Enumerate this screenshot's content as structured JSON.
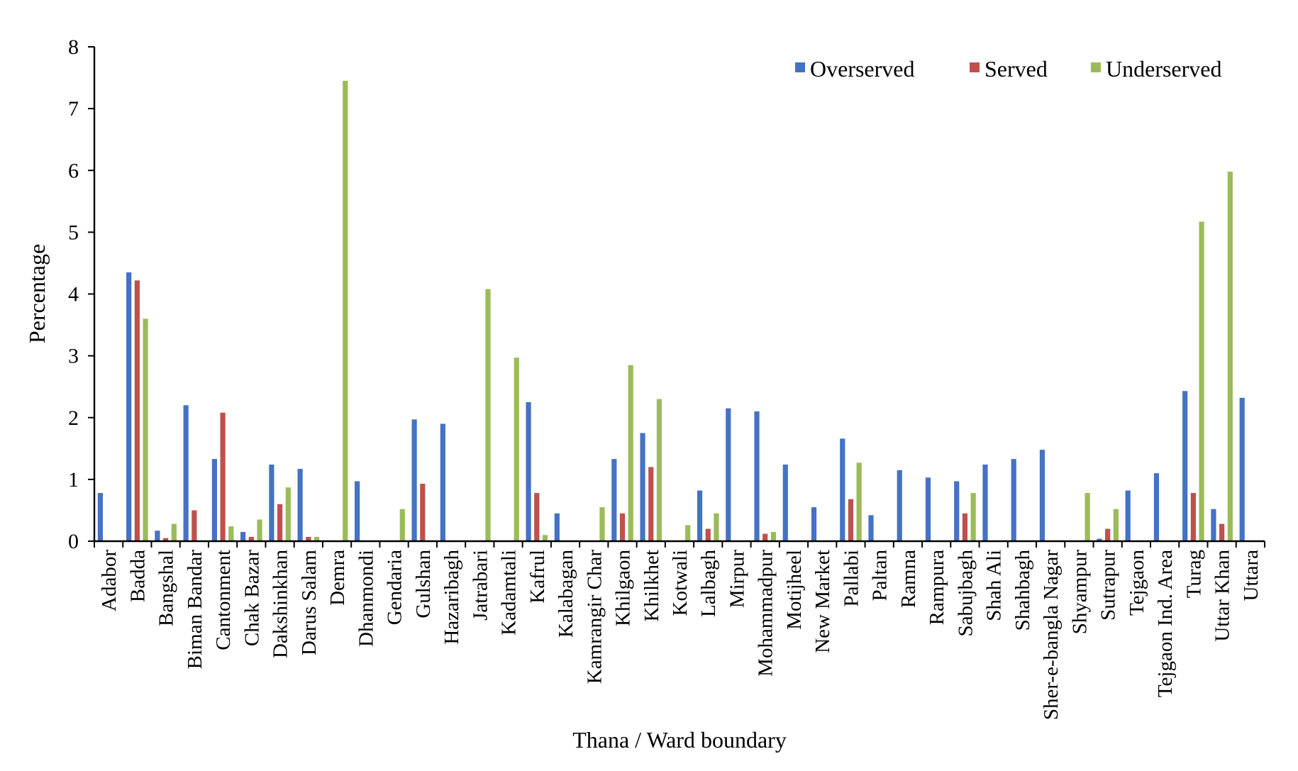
{
  "chart_data": {
    "type": "bar",
    "xlabel": "Thana / Ward boundary",
    "ylabel": "Percentage",
    "ylim": [
      0,
      8
    ],
    "yticks": [
      0,
      1,
      2,
      3,
      4,
      5,
      6,
      7,
      8
    ],
    "grid": false,
    "legend_position": "top-right",
    "categories": [
      "Adabor",
      "Badda",
      "Bangshal",
      "Biman Bandar",
      "Cantonment",
      "Chak Bazar",
      "Dakshinkhan",
      "Darus Salam",
      "Demra",
      "Dhanmondi",
      "Gendaria",
      "Gulshan",
      "Hazaribagh",
      "Jatrabari",
      "Kadamtali",
      "Kafrul",
      "Kalabagan",
      "Kamrangir Char",
      "Khilgaon",
      "Khilkhet",
      "Kotwali",
      "Lalbagh",
      "Mirpur",
      "Mohammadpur",
      "Motijheel",
      "New Market",
      "Pallabi",
      "Paltan",
      "Ramna",
      "Rampura",
      "Sabujbagh",
      "Shah Ali",
      "Shahbagh",
      "Sher-e-bangla Nagar",
      "Shyampur",
      "Sutrapur",
      "Tejgaon",
      "Tejgaon Ind. Area",
      "Turag",
      "Uttar Khan",
      "Uttara"
    ],
    "series": [
      {
        "name": "Overserved",
        "color": "#4472C4",
        "values": [
          0.78,
          4.35,
          0.17,
          2.2,
          1.33,
          0.15,
          1.24,
          1.17,
          0,
          0.97,
          0,
          1.97,
          1.9,
          0,
          0,
          2.25,
          0.45,
          0,
          1.33,
          1.75,
          0,
          0.82,
          2.15,
          2.1,
          1.24,
          0.55,
          1.66,
          0.42,
          1.15,
          1.03,
          0.97,
          1.24,
          1.33,
          1.48,
          0,
          0.04,
          0.82,
          1.1,
          2.43,
          0.52,
          2.32
        ]
      },
      {
        "name": "Served",
        "color": "#C0504D",
        "values": [
          0,
          4.22,
          0.05,
          0.5,
          2.08,
          0.07,
          0.6,
          0.07,
          0,
          0,
          0,
          0.93,
          0,
          0,
          0,
          0.78,
          0,
          0,
          0.45,
          1.2,
          0,
          0.2,
          0,
          0.12,
          0,
          0,
          0.68,
          0,
          0,
          0,
          0.45,
          0,
          0,
          0,
          0,
          0.2,
          0,
          0,
          0.78,
          0.28,
          0
        ]
      },
      {
        "name": "Underserved",
        "color": "#9BBB59",
        "values": [
          0,
          3.6,
          0.28,
          0,
          0.24,
          0.35,
          0.87,
          0.07,
          7.45,
          0,
          0.52,
          0,
          0,
          4.08,
          2.97,
          0.1,
          0,
          0.55,
          2.85,
          2.3,
          0.26,
          0.45,
          0,
          0.15,
          0,
          0,
          1.27,
          0,
          0,
          0,
          0.78,
          0,
          0,
          0,
          0.78,
          0.52,
          0,
          0,
          5.17,
          5.98,
          0
        ]
      }
    ]
  }
}
